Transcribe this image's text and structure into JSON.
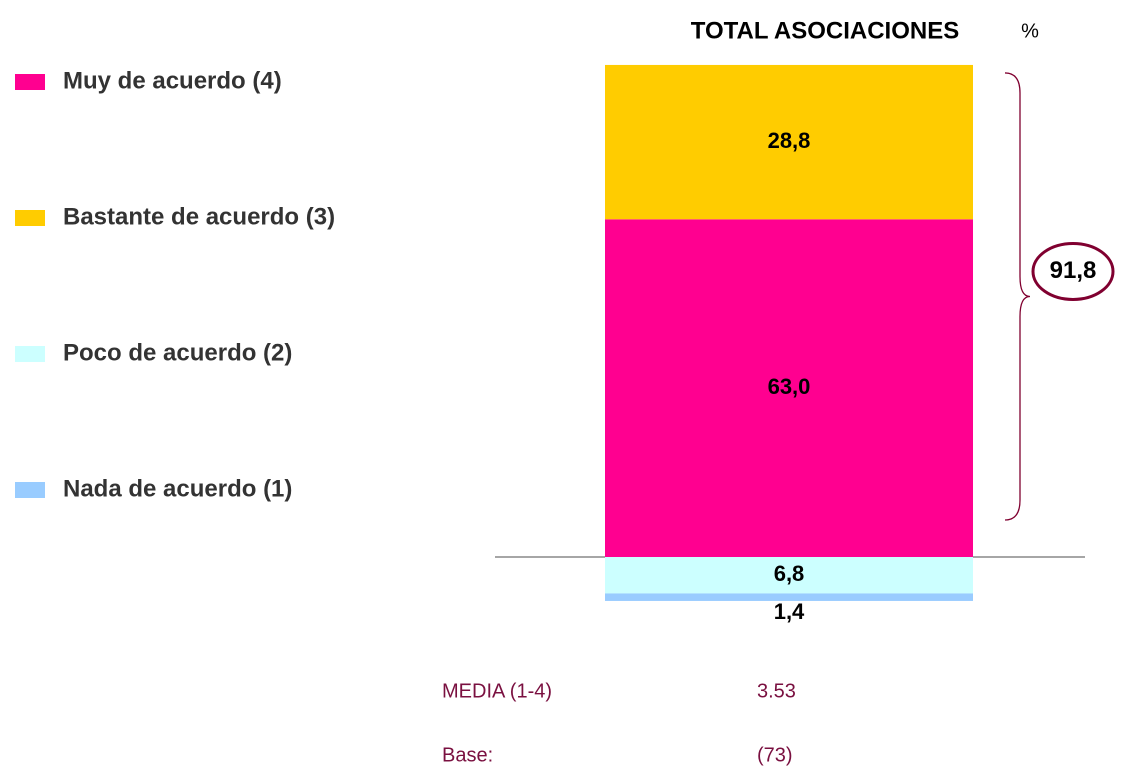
{
  "chart_data": {
    "type": "diverging-stacked-bar",
    "title": "TOTAL ASOCIACIONES",
    "unit": "%",
    "series": [
      {
        "name": "Muy de acuerdo (4)",
        "color": "#ff0090",
        "side": "up",
        "values": [
          63.0
        ],
        "value_labels": [
          "63,0"
        ]
      },
      {
        "name": "Bastante de acuerdo (3)",
        "color": "#ffcc00",
        "side": "up",
        "values": [
          28.8
        ],
        "value_labels": [
          "28,8"
        ]
      },
      {
        "name": "Poco de acuerdo (2)",
        "color": "#ccffff",
        "side": "down",
        "values": [
          6.8
        ],
        "value_labels": [
          "6,8"
        ]
      },
      {
        "name": "Nada de acuerdo (1)",
        "color": "#99ccff",
        "side": "down",
        "values": [
          1.4
        ],
        "value_labels": [
          "1,4"
        ]
      }
    ],
    "total": {
      "value": 91.8,
      "label": "91,8"
    },
    "footer": [
      {
        "label": "MEDIA (1-4)",
        "value": "3.53"
      },
      {
        "label": "Base:",
        "value": "(73)"
      }
    ]
  }
}
